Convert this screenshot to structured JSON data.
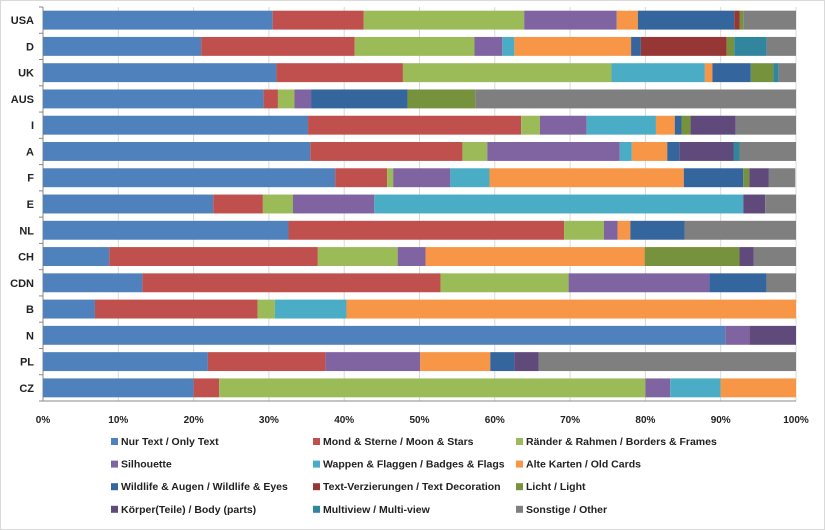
{
  "chart_data": {
    "type": "bar",
    "orientation": "horizontal",
    "stacked": "percent",
    "title": "",
    "xlabel": "",
    "ylabel": "",
    "xlim": [
      0,
      100
    ],
    "grid": true,
    "legend_position": "bottom",
    "x_ticks": [
      "0%",
      "10%",
      "20%",
      "30%",
      "40%",
      "50%",
      "60%",
      "70%",
      "80%",
      "90%",
      "100%"
    ],
    "categories": [
      "USA",
      "D",
      "UK",
      "AUS",
      "I",
      "A",
      "F",
      "E",
      "NL",
      "CH",
      "CDN",
      "B",
      "N",
      "PL",
      "CZ"
    ],
    "series": [
      {
        "name": "Nur Text / Only Text",
        "color": "#4f81bd",
        "values": [
          30.5,
          21.0,
          31.0,
          29.3,
          35.2,
          35.5,
          38.8,
          22.6,
          32.6,
          8.8,
          13.2,
          6.9,
          90.6,
          21.9,
          20.0
        ]
      },
      {
        "name": "Mond & Sterne / Moon & Stars",
        "color": "#c0504d",
        "values": [
          12.1,
          20.4,
          16.8,
          1.9,
          28.3,
          20.2,
          6.9,
          6.6,
          36.6,
          27.7,
          39.6,
          21.6,
          0,
          15.6,
          3.4
        ]
      },
      {
        "name": "Ränder & Rahmen / Borders & Frames",
        "color": "#9bbb59",
        "values": [
          21.3,
          15.9,
          27.7,
          2.2,
          2.5,
          3.3,
          0.8,
          4.0,
          5.3,
          10.6,
          17.0,
          2.3,
          0,
          0,
          56.6
        ]
      },
      {
        "name": "Silhouette",
        "color": "#8064a2",
        "values": [
          12.3,
          3.7,
          0,
          2.2,
          6.2,
          17.6,
          7.6,
          10.8,
          1.8,
          3.7,
          18.7,
          0,
          3.2,
          12.6,
          3.3
        ]
      },
      {
        "name": "Wappen & Flaggen / Badges & Flags",
        "color": "#4bacc6",
        "values": [
          0,
          1.6,
          12.4,
          0,
          9.2,
          1.6,
          5.2,
          49.0,
          0,
          0,
          0,
          9.5,
          0,
          0,
          6.7
        ]
      },
      {
        "name": "Alte Karten / Old Cards",
        "color": "#f79646",
        "values": [
          2.8,
          15.5,
          1.0,
          0,
          2.5,
          4.7,
          25.8,
          0,
          1.7,
          29.1,
          0,
          59.7,
          0,
          9.3,
          10.0
        ]
      },
      {
        "name": "Wildlife & Augen / Wildlife & Eyes",
        "color": "#34659c",
        "values": [
          12.8,
          1.3,
          5.1,
          12.8,
          0.9,
          1.6,
          7.9,
          0,
          7.2,
          0,
          7.6,
          0,
          0,
          3.2,
          0
        ]
      },
      {
        "name": "Text-Verzierungen / Text Decoration",
        "color": "#963735",
        "values": [
          0.7,
          11.4,
          0,
          0,
          0,
          0,
          0,
          0,
          0,
          0,
          0,
          0,
          0,
          0,
          0
        ]
      },
      {
        "name": "Licht / Light",
        "color": "#76923c",
        "values": [
          0.5,
          1.0,
          3.0,
          9.0,
          1.2,
          0,
          0.8,
          0,
          0,
          12.6,
          0,
          0,
          0,
          0,
          0
        ]
      },
      {
        "name": "Körper(Teile) / Body (parts)",
        "color": "#604a7b",
        "values": [
          0,
          0,
          0,
          0,
          6.0,
          7.2,
          2.6,
          2.9,
          0,
          1.9,
          0,
          0,
          6.2,
          3.2,
          0
        ]
      },
      {
        "name": "Multiview / Multi-view",
        "color": "#31859c",
        "values": [
          0,
          4.3,
          0.7,
          0,
          0,
          0.8,
          0,
          0,
          0,
          0,
          0,
          0,
          0,
          0,
          0
        ]
      },
      {
        "name": "Sonstige / Other",
        "color": "#7f7f7f",
        "values": [
          7.0,
          3.9,
          2.3,
          42.6,
          8.0,
          7.5,
          3.5,
          4.1,
          14.8,
          5.6,
          3.9,
          0,
          0,
          34.2,
          0
        ]
      }
    ]
  }
}
